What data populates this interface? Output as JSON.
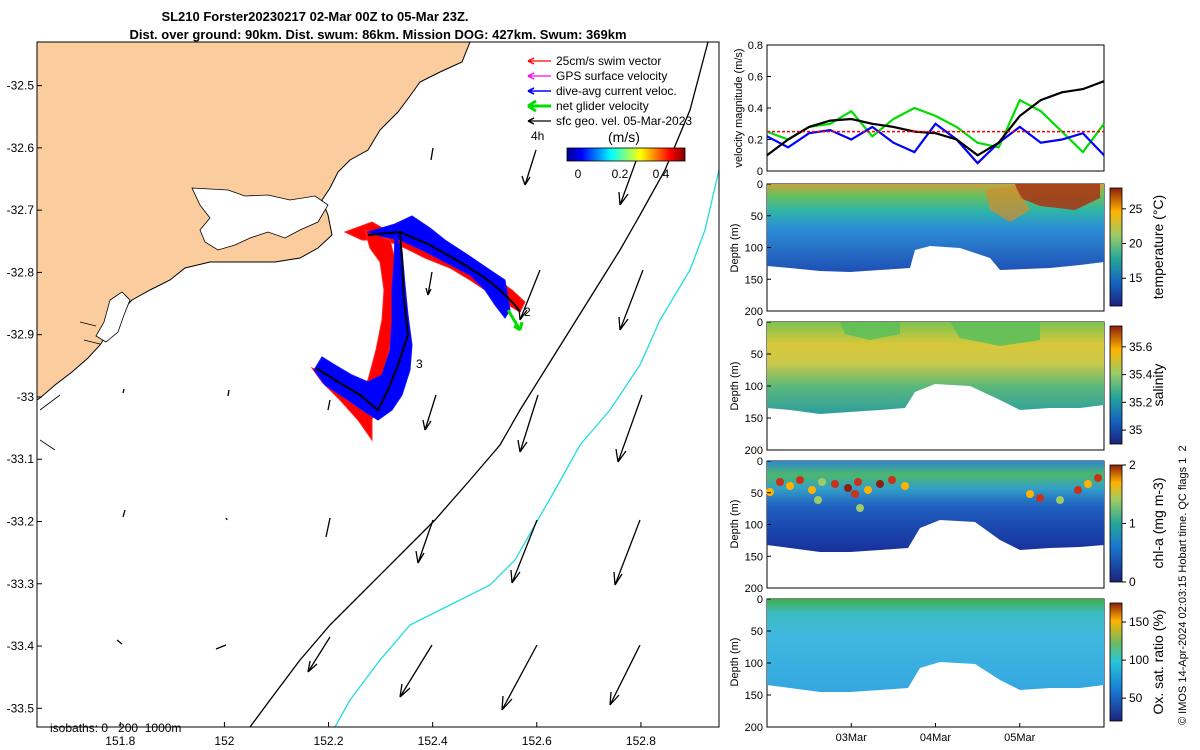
{
  "title": {
    "line1": "SL210 Forster20230217 02-Mar 00Z to 05-Mar 23Z.",
    "line2": "Dist. over ground: 90km. Dist. swum: 86km. Mission DOG: 427km. Swum: 369km"
  },
  "map": {
    "legend": {
      "swim": "25cm/s swim vector",
      "gps": "GPS surface velocity",
      "dive": "dive-avg current veloc.",
      "net": "net glider velocity",
      "geo": "sfc geo. vel. 05-Mar-2023"
    },
    "speed_unit": "(m/s)",
    "speed_ticks": [
      "0",
      "0.2",
      "0.4"
    ],
    "scale_label": "4h",
    "isobaths_label": "isobaths: 0   200  1000m",
    "point_labels": [
      "3",
      "2"
    ],
    "colors": {
      "land": "#fbcd9e",
      "swim": "#ff0000",
      "gps": "#ff00ff",
      "dive": "#0000ff",
      "net": "#00dd00",
      "isobath200": "#000000",
      "isobath1000": "#22dddd"
    }
  },
  "chart_data": [
    {
      "type": "map",
      "xlim": [
        151.64,
        152.95
      ],
      "ylim": [
        -33.53,
        -32.43
      ],
      "x_ticks": [
        "151.8",
        "152",
        "152.2",
        "152.4",
        "152.6",
        "152.8"
      ],
      "y_ticks": [
        "-32.5",
        "-32.6",
        "-32.7",
        "-32.8",
        "-32.9",
        "-33",
        "-33.1",
        "-33.2",
        "-33.3",
        "-33.4",
        "-33.5"
      ],
      "x_tick_values": [
        151.8,
        152.0,
        152.2,
        152.4,
        152.6,
        152.8
      ],
      "y_tick_values": [
        -32.5,
        -32.6,
        -32.7,
        -32.8,
        -32.9,
        -33.0,
        -33.1,
        -33.2,
        -33.3,
        -33.4,
        -33.5
      ],
      "glider_track": [
        [
          152.24,
          -32.74
        ],
        [
          152.33,
          -32.73
        ],
        [
          152.4,
          -32.74
        ],
        [
          152.47,
          -32.76
        ],
        [
          152.51,
          -32.8
        ],
        [
          152.55,
          -32.86
        ],
        [
          152.59,
          -32.89
        ],
        [
          152.33,
          -32.74
        ],
        [
          152.33,
          -32.83
        ],
        [
          152.34,
          -32.93
        ],
        [
          152.29,
          -33.06
        ],
        [
          152.18,
          -32.97
        ]
      ]
    },
    {
      "type": "line",
      "ylabel": "velocity magnitude (m/s)",
      "ylim": [
        0,
        0.8
      ],
      "y_ticks": [
        "0",
        "0.2",
        "0.4",
        "0.6",
        "0.8"
      ],
      "x": [
        0,
        0.25,
        0.5,
        0.75,
        1.0,
        1.25,
        1.5,
        1.75,
        2.0,
        2.25,
        2.5,
        2.75,
        3.0,
        3.25,
        3.5,
        3.75,
        4.0
      ],
      "series": [
        {
          "color": "#00dd00",
          "values": [
            0.25,
            0.2,
            0.28,
            0.3,
            0.38,
            0.22,
            0.33,
            0.4,
            0.35,
            0.28,
            0.18,
            0.15,
            0.45,
            0.38,
            0.25,
            0.12,
            0.3
          ]
        },
        {
          "color": "#0000ff",
          "values": [
            0.22,
            0.15,
            0.24,
            0.26,
            0.2,
            0.28,
            0.18,
            0.12,
            0.3,
            0.2,
            0.05,
            0.18,
            0.28,
            0.18,
            0.2,
            0.24,
            0.1
          ]
        },
        {
          "color": "#000000",
          "values": [
            0.1,
            0.2,
            0.28,
            0.32,
            0.33,
            0.3,
            0.28,
            0.25,
            0.24,
            0.2,
            0.1,
            0.18,
            0.35,
            0.45,
            0.5,
            0.52,
            0.57
          ]
        },
        {
          "color": "#ff0000",
          "values": [
            0.25,
            0.25,
            0.25,
            0.25,
            0.25,
            0.25,
            0.25,
            0.25,
            0.25,
            0.25,
            0.25,
            0.25,
            0.25,
            0.25,
            0.25,
            0.25,
            0.25
          ]
        }
      ]
    },
    {
      "type": "heatmap",
      "ylabel": "Depth (m)",
      "y_ticks": [
        "0",
        "50",
        "100",
        "150",
        "200"
      ],
      "ylim": [
        0,
        200
      ],
      "cbar_label": "temperature (°C)",
      "cbar_ticks": [
        "25",
        "20",
        "15"
      ],
      "cbar_tick_values": [
        25,
        20,
        15
      ],
      "cbar_range": [
        11,
        28
      ]
    },
    {
      "type": "heatmap",
      "ylabel": "Depth (m)",
      "y_ticks": [
        "0",
        "50",
        "100",
        "150",
        "200"
      ],
      "ylim": [
        0,
        200
      ],
      "cbar_label": "salinity",
      "cbar_ticks": [
        "35.6",
        "35.4",
        "35.2",
        "35"
      ],
      "cbar_tick_values": [
        35.6,
        35.4,
        35.2,
        35.0
      ],
      "cbar_range": [
        34.9,
        35.75
      ]
    },
    {
      "type": "heatmap",
      "ylabel": "Depth (m)",
      "y_ticks": [
        "0",
        "50",
        "100",
        "150",
        "200"
      ],
      "ylim": [
        0,
        200
      ],
      "cbar_label": "chl-a (mg m-3)",
      "cbar_ticks": [
        "2",
        "1",
        "0"
      ],
      "cbar_tick_values": [
        2,
        1,
        0
      ],
      "cbar_range": [
        0,
        2
      ]
    },
    {
      "type": "heatmap",
      "ylabel": "Depth (m)",
      "y_ticks": [
        "0",
        "50",
        "100",
        "150",
        "200"
      ],
      "ylim": [
        0,
        200
      ],
      "x_ticks": [
        "03Mar",
        "04Mar",
        "05Mar"
      ],
      "cbar_label": "Ox. sat. ratio (%)",
      "cbar_ticks": [
        "150",
        "100",
        "50"
      ],
      "cbar_tick_values": [
        150,
        100,
        50
      ],
      "cbar_range": [
        20,
        175
      ]
    }
  ],
  "footer": "© IMOS 14-Apr-2024 02:03:15 Hobart time. QC flags 1  2"
}
